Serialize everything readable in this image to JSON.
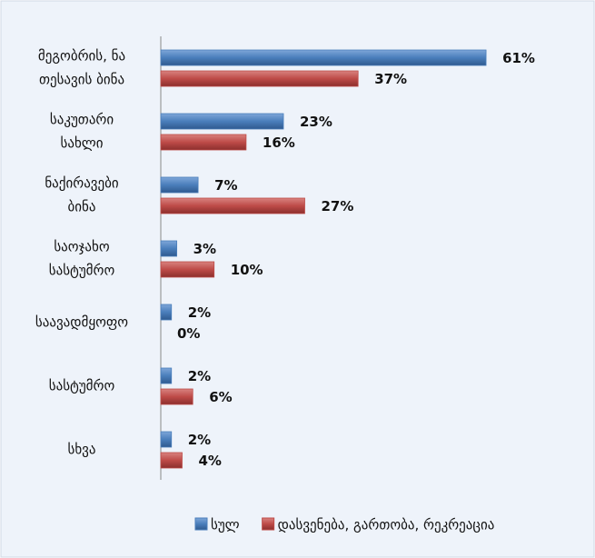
{
  "chart_data": {
    "type": "bar",
    "orientation": "horizontal",
    "categories": [
      [
        "მეგობრის, ნა",
        "თესავის ბინა"
      ],
      [
        "საკუთარი",
        "სახლი"
      ],
      [
        "ნაქირავები",
        "ბინა"
      ],
      [
        "საოჯახო",
        "სასტუმრო"
      ],
      [
        "საავადმყოფო"
      ],
      [
        "სასტუმრო"
      ],
      [
        "სხვა"
      ]
    ],
    "series": [
      {
        "name": "სულ",
        "color": "#4a7ebb",
        "values": [
          61,
          23,
          7,
          3,
          2,
          2,
          2
        ],
        "value_labels": [
          "61%",
          "23%",
          "7%",
          "3%",
          "2%",
          "2%",
          "2%"
        ]
      },
      {
        "name": "დასვენება, გართობა, რეკრეაცია",
        "color": "#be4b48",
        "values": [
          37,
          16,
          27,
          10,
          0,
          6,
          4
        ],
        "value_labels": [
          "37%",
          "16%",
          "27%",
          "10%",
          "0%",
          "6%",
          "4%"
        ]
      }
    ],
    "legend": "bottom"
  }
}
